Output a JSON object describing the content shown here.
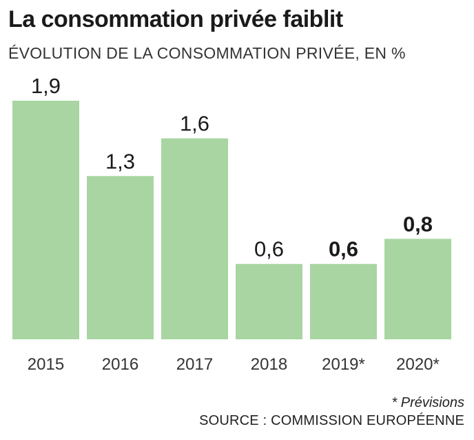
{
  "title": "La consommation privée faiblit",
  "subtitle": "ÉVOLUTION DE LA CONSOMMATION PRIVÉE, EN %",
  "footnote": "* Prévisions",
  "source": "SOURCE : COMMISSION EUROPÉENNE",
  "colors": {
    "bar": "#a8d5a2",
    "text": "#1a1a1a"
  },
  "chart_data": {
    "type": "bar",
    "categories": [
      "2015",
      "2016",
      "2017",
      "2018",
      "2019*",
      "2020*"
    ],
    "values": [
      1.9,
      1.3,
      1.6,
      0.6,
      0.6,
      0.8
    ],
    "value_labels": [
      "1,9",
      "1,3",
      "1,6",
      "0,6",
      "0,6",
      "0,8"
    ],
    "bold_labels": [
      false,
      false,
      false,
      false,
      true,
      true
    ],
    "title": "La consommation privée faiblit",
    "subtitle": "ÉVOLUTION DE LA CONSOMMATION PRIVÉE, EN %",
    "xlabel": "",
    "ylabel": "",
    "ylim": [
      0,
      1.9
    ],
    "grid": false,
    "legend": "none"
  }
}
